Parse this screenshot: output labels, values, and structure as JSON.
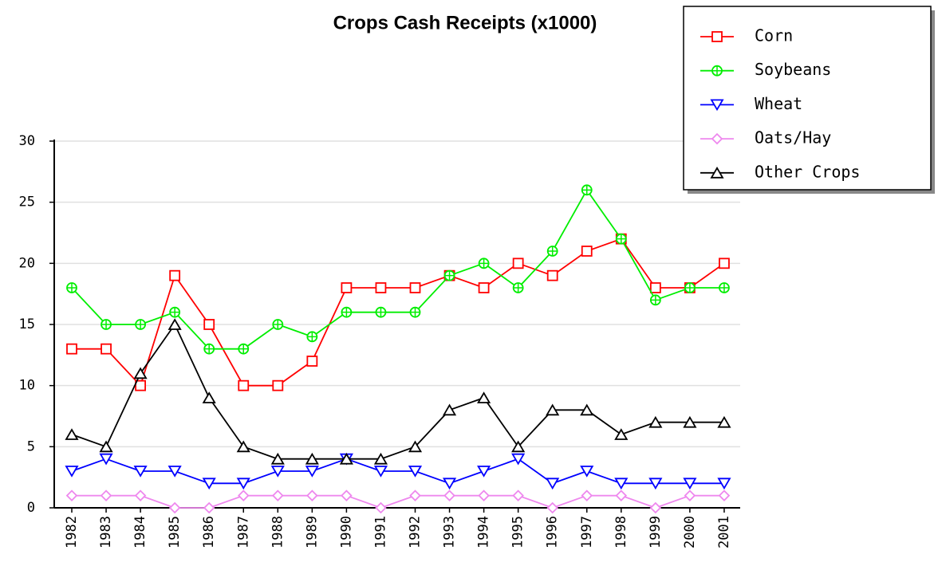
{
  "chart_data": {
    "type": "line",
    "title": "Crops Cash Receipts (x1000)",
    "categories": [
      "1982",
      "1983",
      "1984",
      "1985",
      "1986",
      "1987",
      "1988",
      "1989",
      "1990",
      "1991",
      "1992",
      "1993",
      "1994",
      "1995",
      "1996",
      "1997",
      "1998",
      "1999",
      "2000",
      "2001"
    ],
    "series": [
      {
        "name": "Corn",
        "color": "#ff0000",
        "marker": "square",
        "values": [
          13,
          13,
          10,
          19,
          15,
          10,
          10,
          12,
          18,
          18,
          18,
          19,
          18,
          20,
          19,
          21,
          22,
          18,
          18,
          20
        ]
      },
      {
        "name": "Soybeans",
        "color": "#00ee00",
        "marker": "circle",
        "values": [
          18,
          15,
          15,
          16,
          13,
          13,
          15,
          14,
          16,
          16,
          16,
          19,
          20,
          18,
          21,
          26,
          22,
          17,
          18,
          18
        ]
      },
      {
        "name": "Wheat",
        "color": "#0000ff",
        "marker": "triangle-down",
        "values": [
          3,
          4,
          3,
          3,
          2,
          2,
          3,
          3,
          4,
          3,
          3,
          2,
          3,
          4,
          2,
          3,
          2,
          2,
          2,
          2
        ]
      },
      {
        "name": "Oats/Hay",
        "color": "#ee88ee",
        "marker": "diamond",
        "values": [
          1,
          1,
          1,
          0,
          0,
          1,
          1,
          1,
          1,
          0,
          1,
          1,
          1,
          1,
          0,
          1,
          1,
          0,
          1,
          1
        ]
      },
      {
        "name": "Other Crops",
        "color": "#000000",
        "marker": "triangle-up",
        "values": [
          6,
          5,
          11,
          15,
          9,
          5,
          4,
          4,
          4,
          4,
          5,
          8,
          9,
          5,
          8,
          8,
          6,
          7,
          7,
          7
        ]
      }
    ],
    "ylim": [
      0,
      30
    ],
    "yticks": [
      0,
      5,
      10,
      15,
      20,
      25,
      30
    ],
    "grid": true,
    "legend": "top-right"
  }
}
